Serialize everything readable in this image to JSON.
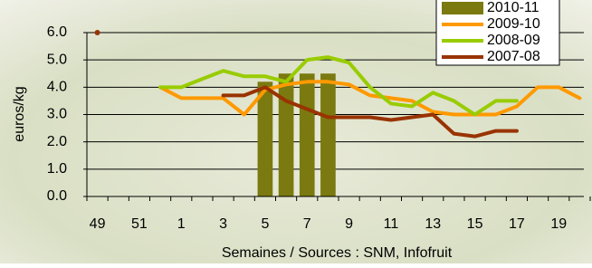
{
  "chart_data": {
    "type": "line",
    "y_label": "euros/kg",
    "x_label": "Semaines / Sources : SNM, Infofruit",
    "categories": [
      "49",
      null,
      "51",
      null,
      "1",
      null,
      "3",
      null,
      "5",
      null,
      "7",
      null,
      "9",
      null,
      "11",
      null,
      "13",
      null,
      "15",
      null,
      "17",
      null,
      "19",
      null
    ],
    "series": [
      {
        "name": "2010-11",
        "type": "bar",
        "color": "#7a7a10",
        "values": [
          null,
          null,
          null,
          null,
          null,
          null,
          null,
          null,
          4.2,
          4.5,
          4.5,
          4.5,
          null,
          null,
          null,
          null,
          null,
          null,
          null,
          null,
          null,
          null,
          null,
          null
        ]
      },
      {
        "name": "2009-10",
        "type": "line",
        "color": "#ff9900",
        "values": [
          null,
          null,
          null,
          4.0,
          3.6,
          3.6,
          3.6,
          3.0,
          3.9,
          4.1,
          4.2,
          4.2,
          4.1,
          3.7,
          3.6,
          3.5,
          3.1,
          3.0,
          3.0,
          3.0,
          3.3,
          4.0,
          4.0,
          3.6
        ]
      },
      {
        "name": "2008-09",
        "type": "line",
        "color": "#99cc00",
        "values": [
          null,
          null,
          null,
          4.0,
          4.0,
          4.3,
          4.6,
          4.4,
          4.4,
          4.2,
          5.0,
          5.1,
          4.9,
          4.0,
          3.4,
          3.3,
          3.8,
          3.5,
          3.0,
          3.5,
          3.5,
          null,
          null,
          null
        ]
      },
      {
        "name": "2007-08",
        "type": "line",
        "color": "#993300",
        "values": [
          6.0,
          null,
          null,
          null,
          null,
          null,
          3.7,
          3.7,
          4.0,
          3.5,
          3.2,
          2.9,
          2.9,
          2.9,
          2.8,
          2.9,
          3.0,
          2.3,
          2.2,
          2.4,
          2.4,
          null,
          null,
          null
        ]
      }
    ],
    "ylim": [
      0,
      6
    ],
    "yticks": [
      {
        "value": 0,
        "label": "0.0"
      },
      {
        "value": 1,
        "label": "1.0"
      },
      {
        "value": 2,
        "label": "2.0"
      },
      {
        "value": 3,
        "label": "3.0"
      },
      {
        "value": 4,
        "label": "4.0"
      },
      {
        "value": 5,
        "label": "5.0"
      },
      {
        "value": 6,
        "label": "6.0"
      }
    ],
    "grid": true,
    "legend": "top-right"
  }
}
